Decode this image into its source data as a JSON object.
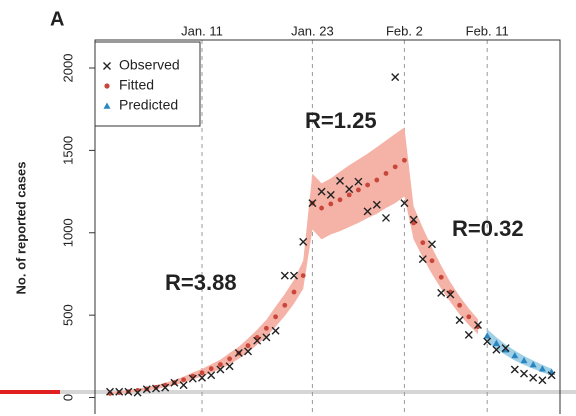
{
  "chart_data": {
    "type": "line",
    "panel_label": "A",
    "y_label": "No. of reported cases",
    "categories": [
      null,
      null,
      null,
      null,
      null,
      null,
      null,
      null,
      null,
      null,
      "Jan. 11",
      null,
      null,
      null,
      null,
      null,
      null,
      null,
      null,
      null,
      null,
      null,
      "Jan. 23",
      null,
      null,
      null,
      null,
      null,
      null,
      null,
      null,
      null,
      "Feb. 2",
      null,
      null,
      null,
      null,
      null,
      null,
      null,
      null,
      "Feb. 11",
      null,
      null,
      null,
      null,
      null,
      null,
      null
    ],
    "date_lines": true,
    "ylim": [
      -100,
      2170
    ],
    "yticks": [
      0,
      500,
      1000,
      1500,
      2000
    ],
    "legend": "top-left",
    "annotations": [
      "R=3.88",
      "R=1.25",
      "R=0.32"
    ],
    "series": [
      {
        "name": "Observed",
        "color": "#222222",
        "marker": "cross",
        "values": [
          35,
          35,
          35,
          30,
          50,
          55,
          60,
          90,
          75,
          115,
          120,
          135,
          170,
          190,
          270,
          280,
          345,
          365,
          405,
          740,
          740,
          945,
          1180,
          1250,
          1230,
          1315,
          1265,
          1310,
          1130,
          1170,
          1090,
          1945,
          1180,
          1080,
          840,
          930,
          635,
          625,
          470,
          380,
          440,
          340,
          290,
          300,
          170,
          145,
          120,
          105,
          135
        ]
      },
      {
        "name": "Fitted",
        "color": "#c8463a",
        "marker": "circle",
        "band_color": "#f5b2a6",
        "values": [
          25,
          30,
          36,
          43,
          52,
          62,
          75,
          90,
          108,
          130,
          150,
          175,
          200,
          235,
          270,
          315,
          365,
          420,
          490,
          560,
          640,
          740,
          1180,
          1150,
          1175,
          1200,
          1230,
          1260,
          1290,
          1320,
          1360,
          1400,
          1440,
          1060,
          940,
          830,
          730,
          640,
          560,
          490,
          430,
          null,
          null,
          null,
          null,
          null,
          null,
          null,
          null
        ],
        "lower": [
          18,
          22,
          28,
          34,
          42,
          51,
          62,
          75,
          90,
          110,
          128,
          150,
          172,
          202,
          235,
          275,
          320,
          370,
          430,
          495,
          570,
          660,
          1020,
          960,
          990,
          1010,
          1035,
          1060,
          1090,
          1115,
          1150,
          1180,
          1220,
          960,
          850,
          750,
          660,
          580,
          505,
          440,
          385,
          null,
          null,
          null,
          null,
          null,
          null,
          null,
          null
        ],
        "upper": [
          32,
          38,
          45,
          53,
          63,
          75,
          90,
          106,
          127,
          152,
          174,
          202,
          230,
          270,
          308,
          358,
          412,
          472,
          552,
          628,
          715,
          830,
          1360,
          1300,
          1330,
          1370,
          1410,
          1445,
          1480,
          1520,
          1560,
          1600,
          1640,
          1160,
          1030,
          910,
          800,
          700,
          615,
          540,
          475,
          null,
          null,
          null,
          null,
          null,
          null,
          null,
          null
        ]
      },
      {
        "name": "Predicted",
        "color": "#2b86c0",
        "marker": "triangle",
        "band_color": "#9fd0e8",
        "values": [
          null,
          null,
          null,
          null,
          null,
          null,
          null,
          null,
          null,
          null,
          null,
          null,
          null,
          null,
          null,
          null,
          null,
          null,
          null,
          null,
          null,
          null,
          null,
          null,
          null,
          null,
          null,
          null,
          null,
          null,
          null,
          null,
          null,
          null,
          null,
          null,
          null,
          null,
          null,
          null,
          null,
          375,
          330,
          290,
          255,
          225,
          200,
          175,
          155
        ],
        "lower": [
          null,
          null,
          null,
          null,
          null,
          null,
          null,
          null,
          null,
          null,
          null,
          null,
          null,
          null,
          null,
          null,
          null,
          null,
          null,
          null,
          null,
          null,
          null,
          null,
          null,
          null,
          null,
          null,
          null,
          null,
          null,
          null,
          null,
          null,
          null,
          null,
          null,
          null,
          null,
          null,
          null,
          335,
          295,
          258,
          225,
          198,
          175,
          152,
          135
        ],
        "upper": [
          null,
          null,
          null,
          null,
          null,
          null,
          null,
          null,
          null,
          null,
          null,
          null,
          null,
          null,
          null,
          null,
          null,
          null,
          null,
          null,
          null,
          null,
          null,
          null,
          null,
          null,
          null,
          null,
          null,
          null,
          null,
          null,
          null,
          null,
          null,
          null,
          null,
          null,
          null,
          null,
          null,
          415,
          365,
          322,
          285,
          252,
          225,
          198,
          175
        ]
      }
    ]
  }
}
